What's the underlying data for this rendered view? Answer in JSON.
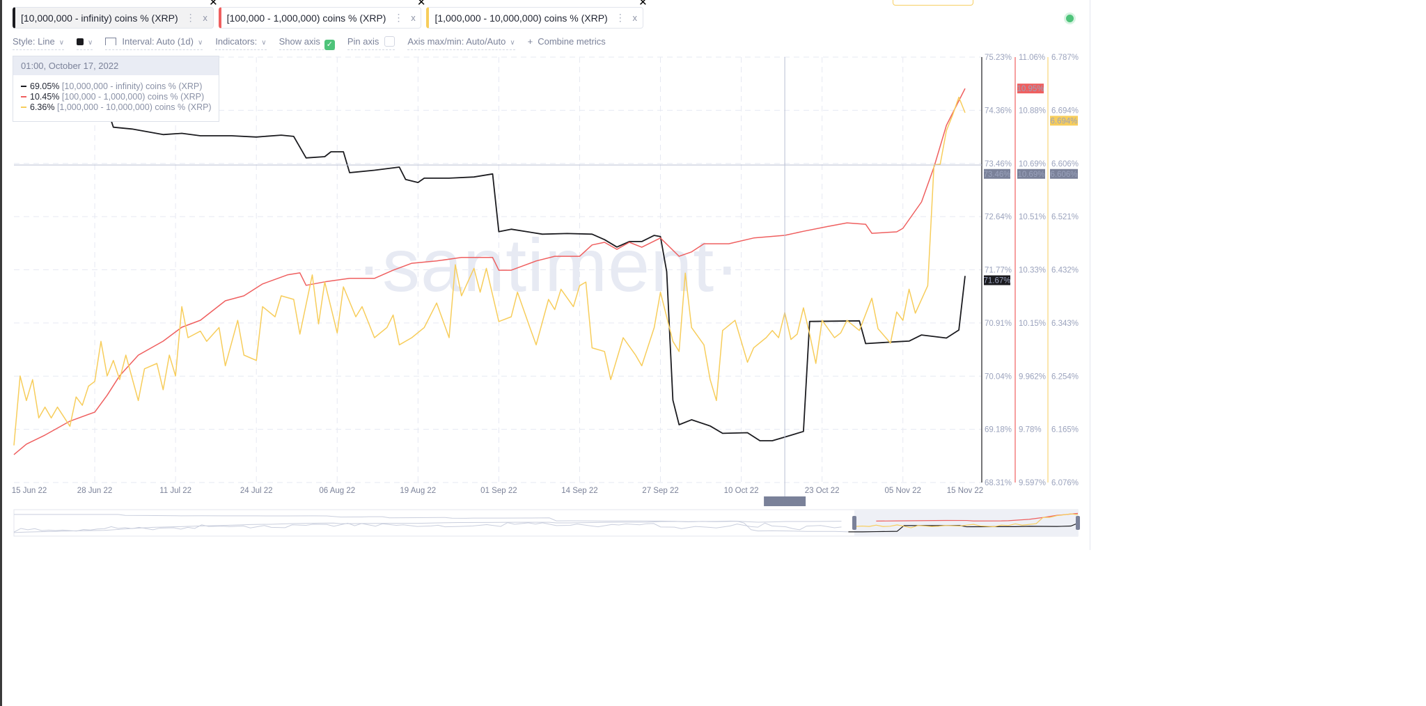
{
  "header": {
    "tabs": [
      {
        "label": "[10,000,000 - infinity) coins % (XRP)",
        "color": "#1b1b1f"
      },
      {
        "label": "[100,000 - 1,000,000) coins % (XRP)",
        "color": "#ef5f5f"
      },
      {
        "label": "[1,000,000 - 10,000,000) coins % (XRP)",
        "color": "#f7cd5b"
      }
    ],
    "tab_menu_icon": "⋮",
    "tab_close_icon": "x",
    "tab_remove_icon": "✕"
  },
  "toolbar": {
    "style": "Style: Line",
    "color_swatch": "#1b1b1f",
    "interval": "Interval: Auto (1d)",
    "indicators": "Indicators:",
    "show_axis": "Show axis",
    "show_axis_checked": true,
    "pin_axis": "Pin axis",
    "pin_axis_checked": false,
    "axis_maxmin": "Axis max/min: Auto/Auto",
    "combine_plus": "+",
    "combine": "Combine metrics"
  },
  "tooltip": {
    "date": "01:00, October 17, 2022",
    "rows": [
      {
        "value": "69.05%",
        "name": "[10,000,000 - infinity) coins % (XRP)"
      },
      {
        "value": "10.45%",
        "name": "[100,000  - 1,000,000) coins % (XRP)"
      },
      {
        "value": "6.36%",
        "name": "[1,000,000 - 10,000,000) coins % (XRP)"
      }
    ]
  },
  "watermark": "·santiment·",
  "crosshair": {
    "date_label": "17 Oct 22",
    "labels": [
      "73.46%",
      "10.69%",
      "6.606%"
    ]
  },
  "chart_data": {
    "type": "line",
    "x_ticks": [
      "15 Jun 22",
      "28 Jun 22",
      "11 Jul 22",
      "24 Jul 22",
      "06 Aug 22",
      "19 Aug 22",
      "01 Sep 22",
      "14 Sep 22",
      "27 Sep 22",
      "10 Oct 22",
      "23 Oct 22",
      "05 Nov 22",
      "15 Nov 22"
    ],
    "xlim": [
      "2022-06-15",
      "2022-11-15"
    ],
    "grid": true,
    "series": [
      {
        "name": "[10,000,000 - infinity) coins % (XRP)",
        "color": "#1b1b1f",
        "axis_ticks": [
          "75.23%",
          "74.36%",
          "73.46%",
          "72.64%",
          "71.77%",
          "70.91%",
          "70.04%",
          "69.18%",
          "68.31%"
        ],
        "ylim": [
          68.31,
          75.23
        ],
        "last_label": "71.67%",
        "points": [
          [
            "2022-06-15",
            74.4
          ],
          [
            "2022-06-30",
            74.4
          ],
          [
            "2022-07-01",
            74.09
          ],
          [
            "2022-07-04",
            74.06
          ],
          [
            "2022-07-09",
            73.97
          ],
          [
            "2022-07-12",
            73.99
          ],
          [
            "2022-07-15",
            73.95
          ],
          [
            "2022-07-20",
            73.95
          ],
          [
            "2022-07-24",
            73.93
          ],
          [
            "2022-07-28",
            73.96
          ],
          [
            "2022-07-30",
            73.94
          ],
          [
            "2022-08-01",
            73.59
          ],
          [
            "2022-08-04",
            73.61
          ],
          [
            "2022-08-05",
            73.69
          ],
          [
            "2022-08-07",
            73.69
          ],
          [
            "2022-08-08",
            73.35
          ],
          [
            "2022-08-12",
            73.39
          ],
          [
            "2022-08-16",
            73.44
          ],
          [
            "2022-08-17",
            73.24
          ],
          [
            "2022-08-19",
            73.19
          ],
          [
            "2022-08-20",
            73.26
          ],
          [
            "2022-08-24",
            73.26
          ],
          [
            "2022-08-28",
            73.28
          ],
          [
            "2022-08-31",
            73.33
          ],
          [
            "2022-09-01",
            72.39
          ],
          [
            "2022-09-03",
            72.43
          ],
          [
            "2022-09-08",
            72.35
          ],
          [
            "2022-09-12",
            72.36
          ],
          [
            "2022-09-16",
            72.35
          ],
          [
            "2022-09-18",
            72.26
          ],
          [
            "2022-09-20",
            72.14
          ],
          [
            "2022-09-22",
            72.23
          ],
          [
            "2022-09-24",
            72.23
          ],
          [
            "2022-09-26",
            72.33
          ],
          [
            "2022-09-27",
            72.31
          ],
          [
            "2022-09-28",
            71.74
          ],
          [
            "2022-09-29",
            69.65
          ],
          [
            "2022-09-30",
            69.25
          ],
          [
            "2022-10-02",
            69.33
          ],
          [
            "2022-10-05",
            69.23
          ],
          [
            "2022-10-07",
            69.11
          ],
          [
            "2022-10-11",
            69.12
          ],
          [
            "2022-10-13",
            68.99
          ],
          [
            "2022-10-15",
            68.99
          ],
          [
            "2022-10-17",
            69.05
          ],
          [
            "2022-10-20",
            69.14
          ],
          [
            "2022-10-21",
            70.93
          ],
          [
            "2022-10-29",
            70.94
          ],
          [
            "2022-10-30",
            70.57
          ],
          [
            "2022-11-04",
            70.6
          ],
          [
            "2022-11-06",
            70.61
          ],
          [
            "2022-11-08",
            70.71
          ],
          [
            "2022-11-12",
            70.66
          ],
          [
            "2022-11-14",
            70.79
          ],
          [
            "2022-11-15",
            71.67
          ]
        ]
      },
      {
        "name": "[100,000 - 1,000,000) coins % (XRP)",
        "color": "#ef5f5f",
        "axis_ticks": [
          "11.06%",
          "10.88%",
          "10.69%",
          "10.51%",
          "10.33%",
          "10.15%",
          "9.962%",
          "9.78%",
          "9.597%"
        ],
        "ylim": [
          9.597,
          11.06
        ],
        "last_label": "10.95%",
        "points": [
          [
            "2022-06-15",
            9.693
          ],
          [
            "2022-06-17",
            9.729
          ],
          [
            "2022-06-20",
            9.76
          ],
          [
            "2022-06-22",
            9.784
          ],
          [
            "2022-06-24",
            9.808
          ],
          [
            "2022-06-28",
            9.839
          ],
          [
            "2022-06-30",
            9.897
          ],
          [
            "2022-07-02",
            9.964
          ],
          [
            "2022-07-05",
            10.035
          ],
          [
            "2022-07-09",
            10.083
          ],
          [
            "2022-07-12",
            10.131
          ],
          [
            "2022-07-15",
            10.155
          ],
          [
            "2022-07-19",
            10.222
          ],
          [
            "2022-07-22",
            10.239
          ],
          [
            "2022-07-25",
            10.28
          ],
          [
            "2022-07-29",
            10.311
          ],
          [
            "2022-07-31",
            10.318
          ],
          [
            "2022-08-01",
            10.275
          ],
          [
            "2022-08-04",
            10.287
          ],
          [
            "2022-08-08",
            10.299
          ],
          [
            "2022-08-12",
            10.299
          ],
          [
            "2022-08-15",
            10.327
          ],
          [
            "2022-08-18",
            10.351
          ],
          [
            "2022-08-22",
            10.359
          ],
          [
            "2022-08-26",
            10.371
          ],
          [
            "2022-08-31",
            10.371
          ],
          [
            "2022-09-01",
            10.327
          ],
          [
            "2022-09-03",
            10.327
          ],
          [
            "2022-09-07",
            10.359
          ],
          [
            "2022-09-10",
            10.375
          ],
          [
            "2022-09-14",
            10.375
          ],
          [
            "2022-09-16",
            10.414
          ],
          [
            "2022-09-18",
            10.423
          ],
          [
            "2022-09-20",
            10.399
          ],
          [
            "2022-09-22",
            10.423
          ],
          [
            "2022-09-24",
            10.406
          ],
          [
            "2022-09-27",
            10.438
          ],
          [
            "2022-09-30",
            10.375
          ],
          [
            "2022-10-02",
            10.39
          ],
          [
            "2022-10-04",
            10.418
          ],
          [
            "2022-10-08",
            10.418
          ],
          [
            "2022-10-12",
            10.438
          ],
          [
            "2022-10-17",
            10.447
          ],
          [
            "2022-10-20",
            10.461
          ],
          [
            "2022-10-24",
            10.478
          ],
          [
            "2022-10-27",
            10.49
          ],
          [
            "2022-10-30",
            10.485
          ],
          [
            "2022-10-31",
            10.454
          ],
          [
            "2022-11-04",
            10.459
          ],
          [
            "2022-11-05",
            10.471
          ],
          [
            "2022-11-08",
            10.562
          ],
          [
            "2022-11-10",
            10.682
          ],
          [
            "2022-11-12",
            10.825
          ],
          [
            "2022-11-15",
            10.952
          ]
        ]
      },
      {
        "name": "[1,000,000 - 10,000,000) coins % (XRP)",
        "color": "#f7cd5b",
        "axis_ticks": [
          "6.787%",
          "6.694%",
          "6.606%",
          "6.521%",
          "6.432%",
          "6.343%",
          "6.254%",
          "6.165%",
          "6.076%"
        ],
        "ylim": [
          6.076,
          6.787
        ],
        "last_label": "6.694%",
        "points": [
          [
            "2022-06-15",
            6.138
          ],
          [
            "2022-06-16",
            6.254
          ],
          [
            "2022-06-17",
            6.213
          ],
          [
            "2022-06-18",
            6.248
          ],
          [
            "2022-06-19",
            6.184
          ],
          [
            "2022-06-20",
            6.202
          ],
          [
            "2022-06-21",
            6.184
          ],
          [
            "2022-06-22",
            6.202
          ],
          [
            "2022-06-24",
            6.17
          ],
          [
            "2022-06-25",
            6.219
          ],
          [
            "2022-06-26",
            6.205
          ],
          [
            "2022-06-27",
            6.237
          ],
          [
            "2022-06-28",
            6.245
          ],
          [
            "2022-06-29",
            6.312
          ],
          [
            "2022-06-30",
            6.254
          ],
          [
            "2022-07-01",
            6.28
          ],
          [
            "2022-07-02",
            6.248
          ],
          [
            "2022-07-03",
            6.289
          ],
          [
            "2022-07-05",
            6.213
          ],
          [
            "2022-07-06",
            6.266
          ],
          [
            "2022-07-08",
            6.275
          ],
          [
            "2022-07-09",
            6.231
          ],
          [
            "2022-07-10",
            6.289
          ],
          [
            "2022-07-11",
            6.254
          ],
          [
            "2022-07-12",
            6.37
          ],
          [
            "2022-07-13",
            6.318
          ],
          [
            "2022-07-15",
            6.329
          ],
          [
            "2022-07-16",
            6.312
          ],
          [
            "2022-07-18",
            6.335
          ],
          [
            "2022-07-19",
            6.271
          ],
          [
            "2022-07-21",
            6.347
          ],
          [
            "2022-07-22",
            6.289
          ],
          [
            "2022-07-24",
            6.28
          ],
          [
            "2022-07-25",
            6.37
          ],
          [
            "2022-07-27",
            6.353
          ],
          [
            "2022-07-28",
            6.388
          ],
          [
            "2022-07-30",
            6.382
          ],
          [
            "2022-07-31",
            6.324
          ],
          [
            "2022-08-02",
            6.423
          ],
          [
            "2022-08-03",
            6.341
          ],
          [
            "2022-08-04",
            6.411
          ],
          [
            "2022-08-06",
            6.326
          ],
          [
            "2022-08-07",
            6.403
          ],
          [
            "2022-08-09",
            6.353
          ],
          [
            "2022-08-10",
            6.37
          ],
          [
            "2022-08-12",
            6.318
          ],
          [
            "2022-08-14",
            6.335
          ],
          [
            "2022-08-15",
            6.356
          ],
          [
            "2022-08-16",
            6.306
          ],
          [
            "2022-08-18",
            6.318
          ],
          [
            "2022-08-20",
            6.335
          ],
          [
            "2022-08-22",
            6.376
          ],
          [
            "2022-08-24",
            6.318
          ],
          [
            "2022-08-25",
            6.44
          ],
          [
            "2022-08-26",
            6.388
          ],
          [
            "2022-08-28",
            6.434
          ],
          [
            "2022-08-29",
            6.394
          ],
          [
            "2022-08-30",
            6.434
          ],
          [
            "2022-09-01",
            6.345
          ],
          [
            "2022-09-03",
            6.353
          ],
          [
            "2022-09-04",
            6.394
          ],
          [
            "2022-09-06",
            6.335
          ],
          [
            "2022-09-07",
            6.306
          ],
          [
            "2022-09-09",
            6.382
          ],
          [
            "2022-09-10",
            6.365
          ],
          [
            "2022-09-11",
            6.399
          ],
          [
            "2022-09-13",
            6.37
          ],
          [
            "2022-09-14",
            6.405
          ],
          [
            "2022-09-15",
            6.411
          ],
          [
            "2022-09-16",
            6.301
          ],
          [
            "2022-09-18",
            6.295
          ],
          [
            "2022-09-19",
            6.248
          ],
          [
            "2022-09-21",
            6.318
          ],
          [
            "2022-09-23",
            6.289
          ],
          [
            "2022-09-24",
            6.271
          ],
          [
            "2022-09-26",
            6.335
          ],
          [
            "2022-09-27",
            6.394
          ],
          [
            "2022-09-29",
            6.312
          ],
          [
            "2022-09-30",
            6.295
          ],
          [
            "2022-10-01",
            6.426
          ],
          [
            "2022-10-02",
            6.335
          ],
          [
            "2022-10-04",
            6.306
          ],
          [
            "2022-10-05",
            6.248
          ],
          [
            "2022-10-06",
            6.213
          ],
          [
            "2022-10-07",
            6.33
          ],
          [
            "2022-10-09",
            6.347
          ],
          [
            "2022-10-11",
            6.277
          ],
          [
            "2022-10-12",
            6.301
          ],
          [
            "2022-10-14",
            6.318
          ],
          [
            "2022-10-15",
            6.33
          ],
          [
            "2022-10-16",
            6.318
          ],
          [
            "2022-10-17",
            6.36
          ],
          [
            "2022-10-18",
            6.315
          ],
          [
            "2022-10-19",
            6.324
          ],
          [
            "2022-10-20",
            6.368
          ],
          [
            "2022-10-21",
            6.324
          ],
          [
            "2022-10-22",
            6.275
          ],
          [
            "2022-10-23",
            6.347
          ],
          [
            "2022-10-25",
            6.318
          ],
          [
            "2022-10-26",
            6.326
          ],
          [
            "2022-10-27",
            6.347
          ],
          [
            "2022-10-29",
            6.33
          ],
          [
            "2022-10-31",
            6.384
          ],
          [
            "2022-11-01",
            6.333
          ],
          [
            "2022-11-03",
            6.309
          ],
          [
            "2022-11-04",
            6.361
          ],
          [
            "2022-11-05",
            6.347
          ],
          [
            "2022-11-06",
            6.399
          ],
          [
            "2022-11-07",
            6.359
          ],
          [
            "2022-11-09",
            6.405
          ],
          [
            "2022-11-10",
            6.607
          ],
          [
            "2022-11-11",
            6.608
          ],
          [
            "2022-11-12",
            6.664
          ],
          [
            "2022-11-13",
            6.69
          ],
          [
            "2022-11-14",
            6.72
          ],
          [
            "2022-11-15",
            6.694
          ]
        ]
      }
    ]
  },
  "colors": {
    "grid": "#e6e9f2",
    "crosshair": "#b9bfd3",
    "crosshair_label_bg": "#7a8199",
    "accent_green": "#4ec37a"
  }
}
